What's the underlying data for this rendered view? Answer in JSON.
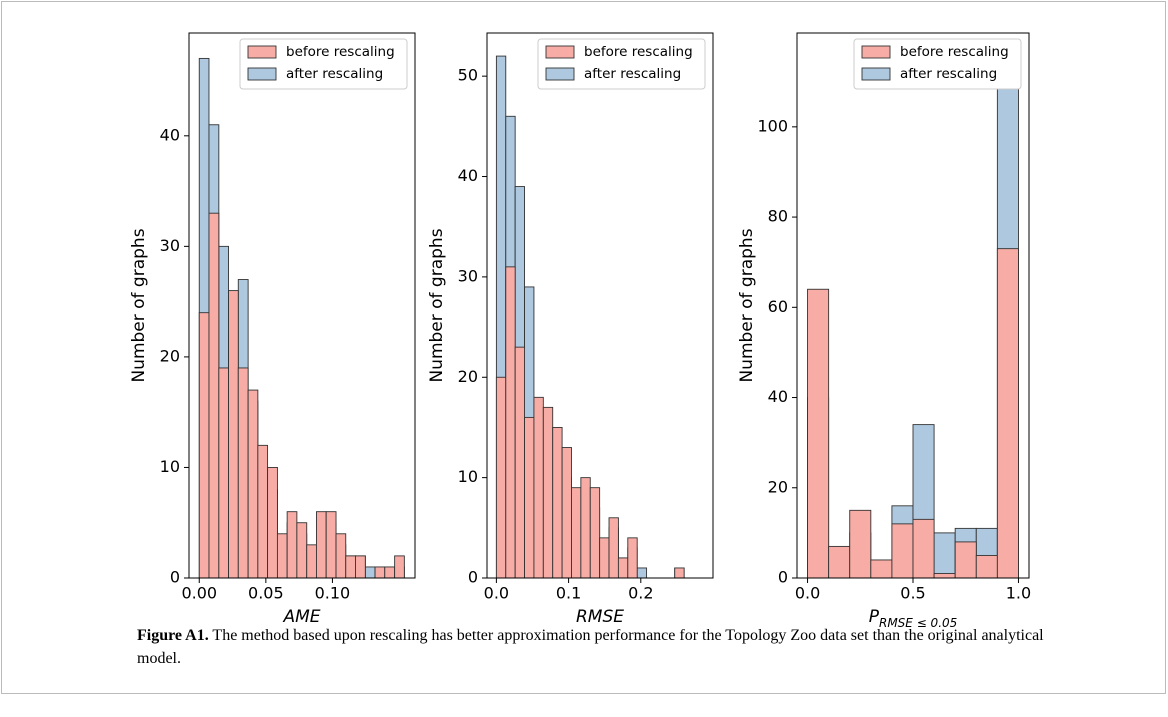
{
  "chart_data": [
    {
      "type": "histogram",
      "xlabel": "AME",
      "ylabel": "Number of graphs",
      "legend": "upper right",
      "bins": [
        0,
        0.0073,
        0.0147,
        0.022,
        0.0293,
        0.0367,
        0.044,
        0.0513,
        0.0587,
        0.066,
        0.0733,
        0.0807,
        0.088,
        0.0953,
        0.1027,
        0.11,
        0.1173,
        0.1247,
        0.132,
        0.1393,
        0.1467,
        0.154
      ],
      "series": [
        {
          "name": "before rescaling",
          "color": "#f7aca5",
          "values": [
            24,
            33,
            19,
            26,
            19,
            17,
            12,
            10,
            4,
            6,
            5,
            3,
            6,
            6,
            4,
            2,
            2,
            0,
            1,
            1,
            2
          ]
        },
        {
          "name": "after rescaling",
          "color": "#aec8df",
          "values": [
            47,
            41,
            30,
            22,
            27,
            16,
            10,
            8,
            3,
            5,
            4,
            2,
            5,
            5,
            3,
            2,
            2,
            1,
            1,
            1,
            1
          ]
        }
      ],
      "xlim": [
        -0.0077,
        0.162
      ],
      "ylim": [
        0,
        49.3
      ],
      "xticks": [
        {
          "value": 0,
          "label": "0.00"
        },
        {
          "value": 0.05,
          "label": "0.05"
        },
        {
          "value": 0.1,
          "label": "0.10"
        }
      ],
      "yticks": [
        0,
        10,
        20,
        30,
        40
      ]
    },
    {
      "type": "histogram",
      "xlabel": "RMSE",
      "ylabel": "Number of graphs",
      "legend": "upper right",
      "bins": [
        0,
        0.013,
        0.026,
        0.039,
        0.052,
        0.065,
        0.078,
        0.091,
        0.104,
        0.117,
        0.13,
        0.143,
        0.156,
        0.169,
        0.182,
        0.195,
        0.208,
        0.221,
        0.234,
        0.247,
        0.26
      ],
      "series": [
        {
          "name": "before rescaling",
          "color": "#f7aca5",
          "values": [
            20,
            31,
            23,
            16,
            18,
            17,
            15,
            13,
            9,
            10,
            9,
            4,
            6,
            2,
            4,
            0,
            0,
            0,
            0,
            1
          ]
        },
        {
          "name": "after rescaling",
          "color": "#aec8df",
          "values": [
            52,
            46,
            39,
            29,
            14,
            13,
            12,
            10,
            7,
            8,
            7,
            3,
            5,
            2,
            3,
            1,
            0,
            0,
            0,
            1
          ]
        }
      ],
      "xlim": [
        -0.013,
        0.3
      ],
      "ylim": [
        0,
        54.3
      ],
      "xticks": [
        {
          "value": 0,
          "label": "0.0"
        },
        {
          "value": 0.1,
          "label": "0.1"
        },
        {
          "value": 0.2,
          "label": "0.2"
        }
      ],
      "yticks": [
        0,
        10,
        20,
        30,
        40,
        50
      ]
    },
    {
      "type": "histogram",
      "xlabel": "P",
      "xlabel_sub": "RMSE ≤ 0.05",
      "ylabel": "Number of graphs",
      "legend": "upper right",
      "bins": [
        0,
        0.1,
        0.2,
        0.3,
        0.4,
        0.5,
        0.6,
        0.7,
        0.8,
        0.9,
        1
      ],
      "series": [
        {
          "name": "before rescaling",
          "color": "#f7aca5",
          "values": [
            64,
            7,
            15,
            4,
            12,
            13,
            1,
            8,
            5,
            73
          ]
        },
        {
          "name": "after rescaling",
          "color": "#aec8df",
          "values": [
            40,
            5,
            10,
            3,
            16,
            34,
            10,
            11,
            11,
            109
          ]
        }
      ],
      "xlim": [
        -0.05,
        1.05
      ],
      "ylim": [
        0,
        120.8
      ],
      "xticks": [
        {
          "value": 0,
          "label": "0.0"
        },
        {
          "value": 0.5,
          "label": "0.5"
        },
        {
          "value": 1,
          "label": "1.0"
        }
      ],
      "yticks": [
        0,
        20,
        40,
        60,
        80,
        100
      ]
    }
  ],
  "caption": {
    "label": "Figure A1.",
    "text": "The method based upon rescaling has better approximation performance for the Topology Zoo data set than the original analytical model."
  }
}
